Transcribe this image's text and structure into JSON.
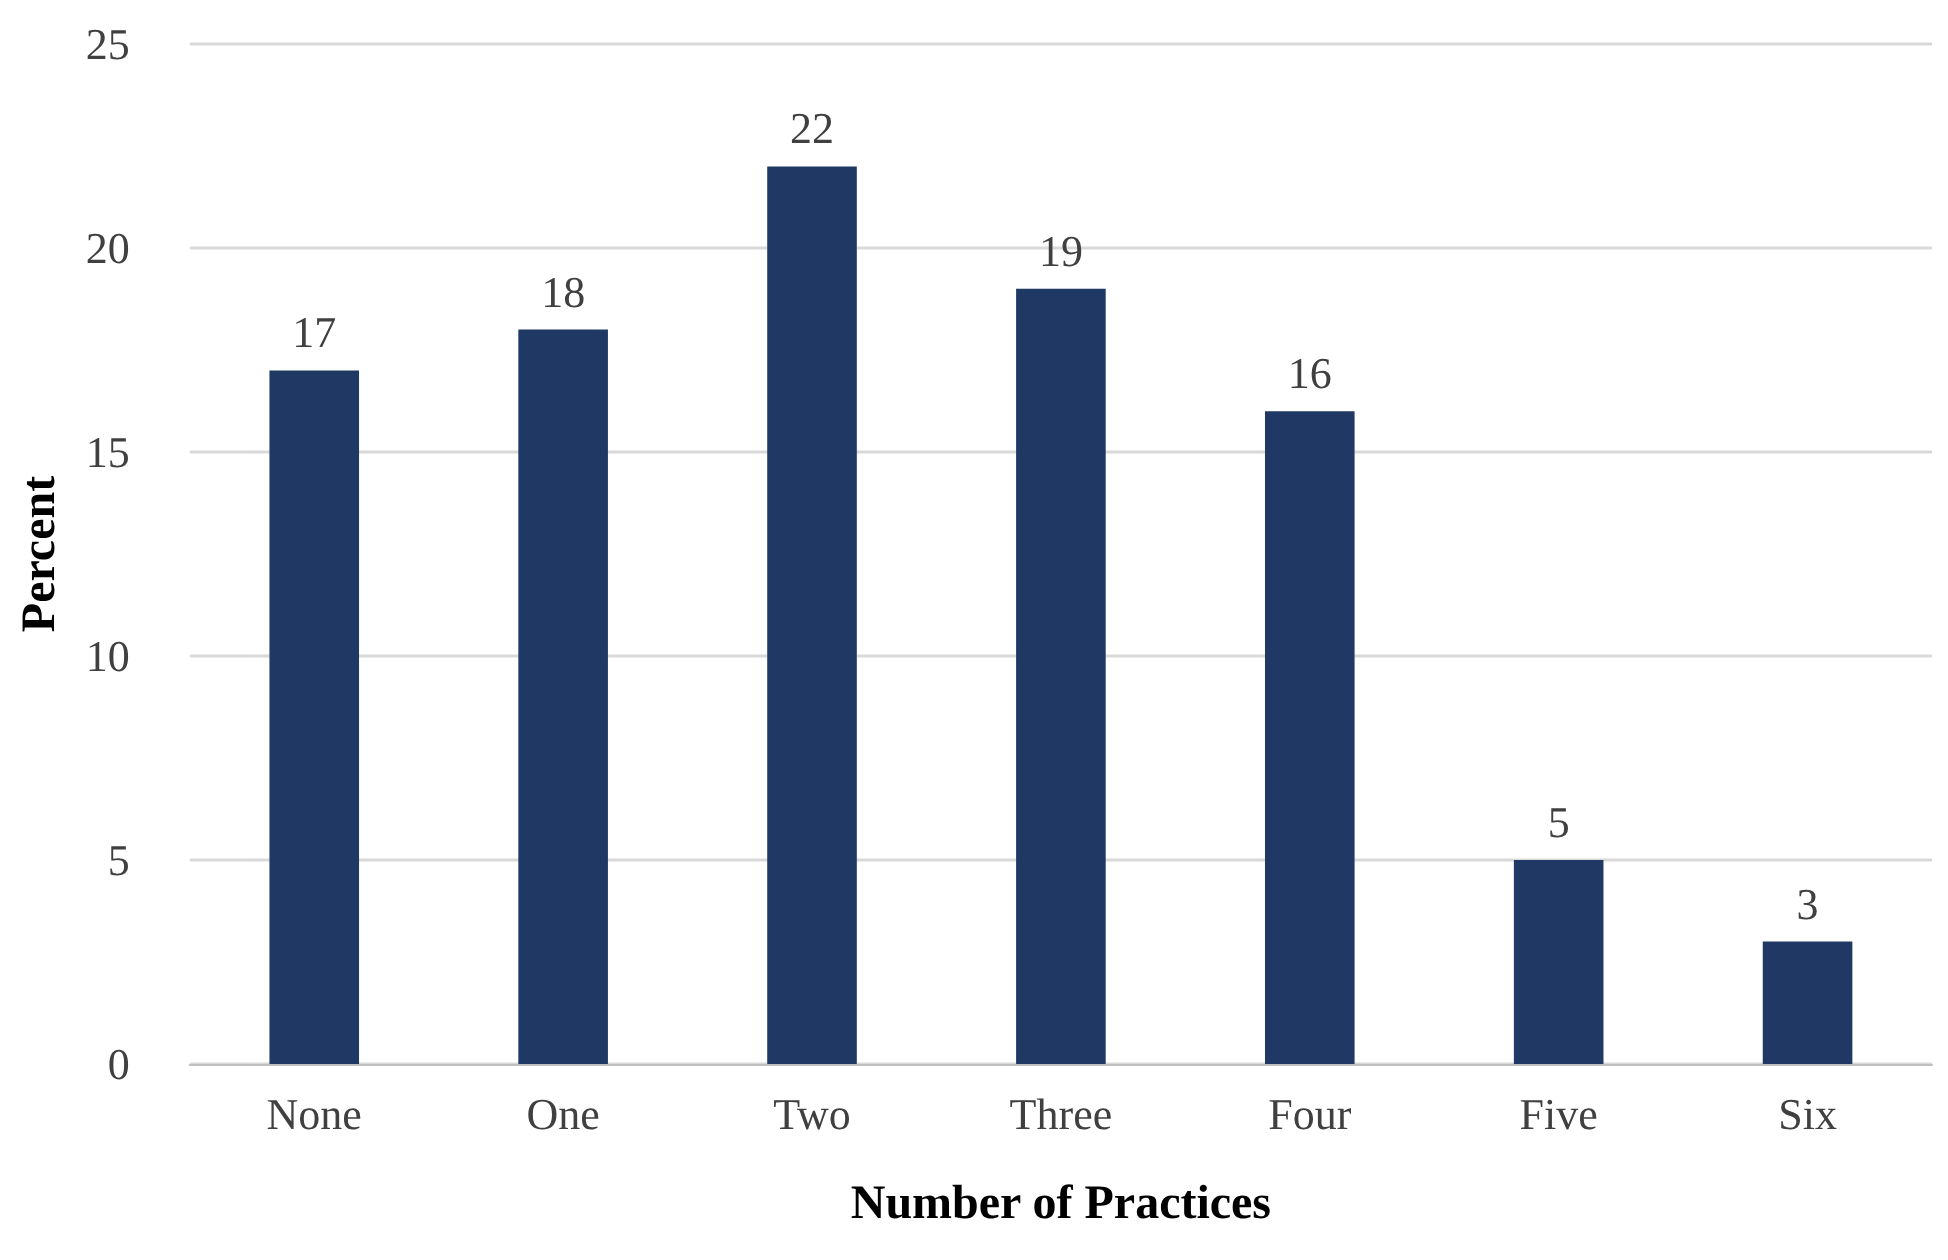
{
  "chart_data": {
    "type": "bar",
    "xlabel": "Number of Practices",
    "ylabel": "Percent",
    "categories": [
      "None",
      "One",
      "Two",
      "Three",
      "Four",
      "Five",
      "Six"
    ],
    "values": [
      17,
      18,
      22,
      19,
      16,
      5,
      3
    ],
    "color": "#1f3864",
    "ylim": [
      0,
      25
    ],
    "yticks": [
      0,
      5,
      10,
      15,
      20,
      25
    ],
    "grid": "y",
    "data_labels": true
  }
}
